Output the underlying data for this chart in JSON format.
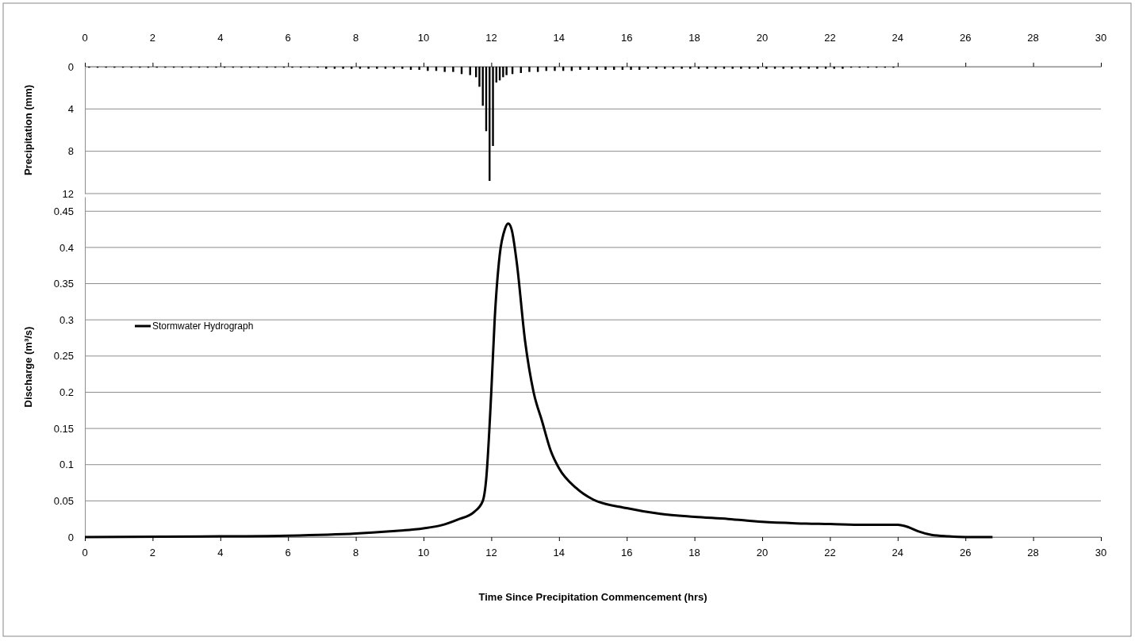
{
  "chart_data": [
    {
      "type": "bar",
      "ylabel": "Precipitation (mm)",
      "xlim": [
        0,
        30
      ],
      "xticks": [
        0,
        2,
        4,
        6,
        8,
        10,
        12,
        14,
        16,
        18,
        20,
        22,
        24,
        26,
        28,
        30
      ],
      "ylim": [
        12,
        0
      ],
      "yticks": [
        0,
        4,
        8,
        12
      ],
      "grid": "y",
      "x": [
        0.125,
        0.375,
        0.625,
        0.875,
        1.125,
        1.375,
        1.625,
        1.875,
        2.125,
        2.375,
        2.625,
        2.875,
        3.125,
        3.375,
        3.625,
        3.875,
        4.125,
        4.375,
        4.625,
        4.875,
        5.125,
        5.375,
        5.625,
        5.875,
        6.125,
        6.375,
        6.625,
        6.875,
        7.125,
        7.375,
        7.625,
        7.875,
        8.125,
        8.375,
        8.625,
        8.875,
        9.125,
        9.375,
        9.625,
        9.875,
        10.125,
        10.375,
        10.625,
        10.875,
        11.125,
        11.375,
        11.55,
        11.65,
        11.75,
        11.85,
        11.95,
        12.05,
        12.15,
        12.25,
        12.35,
        12.45,
        12.625,
        12.875,
        13.125,
        13.375,
        13.625,
        13.875,
        14.125,
        14.375,
        14.625,
        14.875,
        15.125,
        15.375,
        15.625,
        15.875,
        16.125,
        16.375,
        16.625,
        16.875,
        17.125,
        17.375,
        17.625,
        17.875,
        18.125,
        18.375,
        18.625,
        18.875,
        19.125,
        19.375,
        19.625,
        19.875,
        20.125,
        20.375,
        20.625,
        20.875,
        21.125,
        21.375,
        21.625,
        21.875,
        22.125,
        22.375,
        22.625,
        22.875,
        23.125,
        23.375,
        23.625,
        23.875
      ],
      "values": [
        0.1,
        0.1,
        0.1,
        0.1,
        0.1,
        0.1,
        0.1,
        0.1,
        0.1,
        0.1,
        0.1,
        0.1,
        0.1,
        0.1,
        0.1,
        0.1,
        0.1,
        0.1,
        0.1,
        0.1,
        0.1,
        0.1,
        0.1,
        0.1,
        0.1,
        0.1,
        0.1,
        0.1,
        0.2,
        0.2,
        0.2,
        0.2,
        0.2,
        0.2,
        0.2,
        0.2,
        0.2,
        0.2,
        0.3,
        0.3,
        0.4,
        0.4,
        0.5,
        0.5,
        0.7,
        0.8,
        1.0,
        1.9,
        3.7,
        6.1,
        10.8,
        7.5,
        1.5,
        1.3,
        1.0,
        0.8,
        0.7,
        0.6,
        0.5,
        0.5,
        0.4,
        0.4,
        0.4,
        0.4,
        0.3,
        0.3,
        0.3,
        0.3,
        0.3,
        0.3,
        0.3,
        0.3,
        0.2,
        0.2,
        0.2,
        0.2,
        0.2,
        0.2,
        0.2,
        0.2,
        0.2,
        0.2,
        0.2,
        0.2,
        0.2,
        0.2,
        0.2,
        0.2,
        0.2,
        0.2,
        0.2,
        0.2,
        0.2,
        0.2,
        0.2,
        0.2,
        0.1,
        0.1,
        0.1,
        0.1,
        0.1,
        0.1
      ],
      "color": "#000000"
    },
    {
      "type": "line",
      "xlabel": "Time Since Precipitation Commencement (hrs)",
      "ylabel": "Discharge (m³/s)",
      "xlim": [
        0,
        30
      ],
      "xticks": [
        0,
        2,
        4,
        6,
        8,
        10,
        12,
        14,
        16,
        18,
        20,
        22,
        24,
        26,
        28,
        30
      ],
      "ylim": [
        0,
        0.47
      ],
      "yticks": [
        0,
        0.05,
        0.1,
        0.15,
        0.2,
        0.25,
        0.3,
        0.35,
        0.4,
        0.45
      ],
      "grid": "y",
      "legend": "left",
      "line_style": "solid",
      "series": [
        {
          "name": "Stormwater Hydrograph",
          "color": "#000000",
          "x": [
            0,
            4,
            6,
            8,
            9,
            10,
            10.5,
            11,
            11.5,
            11.75,
            11.85,
            12,
            12.1,
            12.25,
            12.4,
            12.5,
            12.6,
            12.75,
            13,
            13.25,
            13.5,
            13.75,
            14,
            14.5,
            15,
            16,
            17,
            18,
            19,
            20,
            21,
            22,
            23,
            24,
            24.3,
            24.6,
            25,
            25.5,
            26,
            26.8
          ],
          "values": [
            0,
            0.001,
            0.002,
            0.005,
            0.008,
            0.012,
            0.016,
            0.024,
            0.035,
            0.05,
            0.08,
            0.2,
            0.3,
            0.39,
            0.425,
            0.433,
            0.425,
            0.38,
            0.27,
            0.2,
            0.16,
            0.12,
            0.095,
            0.068,
            0.052,
            0.04,
            0.032,
            0.028,
            0.025,
            0.021,
            0.019,
            0.018,
            0.017,
            0.017,
            0.014,
            0.008,
            0.003,
            0.001,
            0,
            0
          ]
        }
      ]
    }
  ]
}
